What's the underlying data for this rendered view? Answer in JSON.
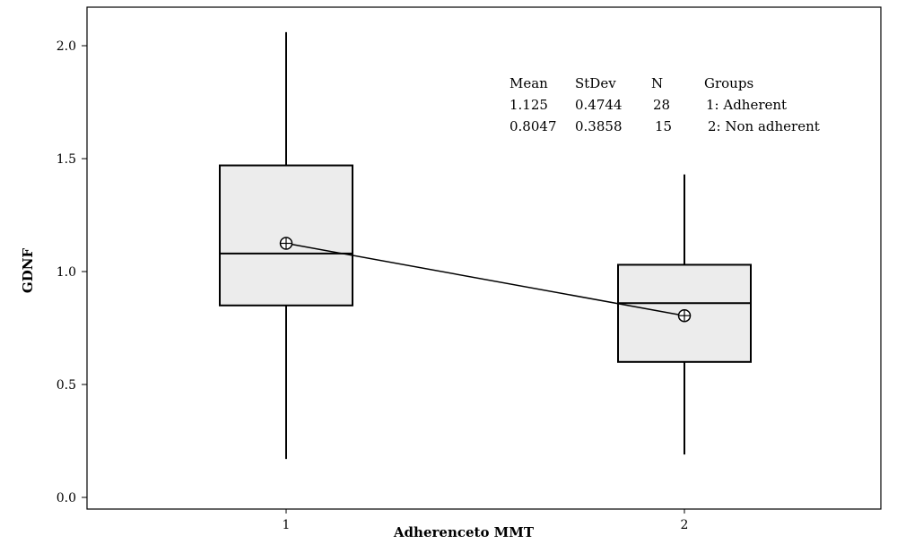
{
  "chart_data": {
    "type": "boxplot",
    "title": "",
    "xlabel": "Adherenceto MMT",
    "ylabel": "GDNF",
    "ylim": [
      -0.05,
      2.18
    ],
    "yticks": [
      "0.0",
      "0.5",
      "1.0",
      "1.5",
      "2.0"
    ],
    "ytick_values": [
      0.0,
      0.5,
      1.0,
      1.5,
      2.0
    ],
    "categories": [
      "1",
      "2"
    ],
    "boxes": [
      {
        "category": "1",
        "whisker_low": 0.17,
        "q1": 0.85,
        "median": 1.08,
        "q3": 1.47,
        "whisker_high": 2.06,
        "mean": 1.125
      },
      {
        "category": "2",
        "whisker_low": 0.19,
        "q1": 0.6,
        "median": 0.86,
        "q3": 1.03,
        "whisker_high": 1.43,
        "mean": 0.8047
      }
    ],
    "mean_line": true,
    "colors": {
      "box_fill": "#ececec",
      "stroke": "#000000"
    },
    "stats_table": {
      "headers": [
        "Mean",
        "StDev",
        "N",
        "Groups"
      ],
      "rows": [
        [
          "1.125",
          "0.4744",
          "28",
          "1: Adherent"
        ],
        [
          "0.8047",
          "0.3858",
          "15",
          "2: Non adherent"
        ]
      ]
    }
  }
}
